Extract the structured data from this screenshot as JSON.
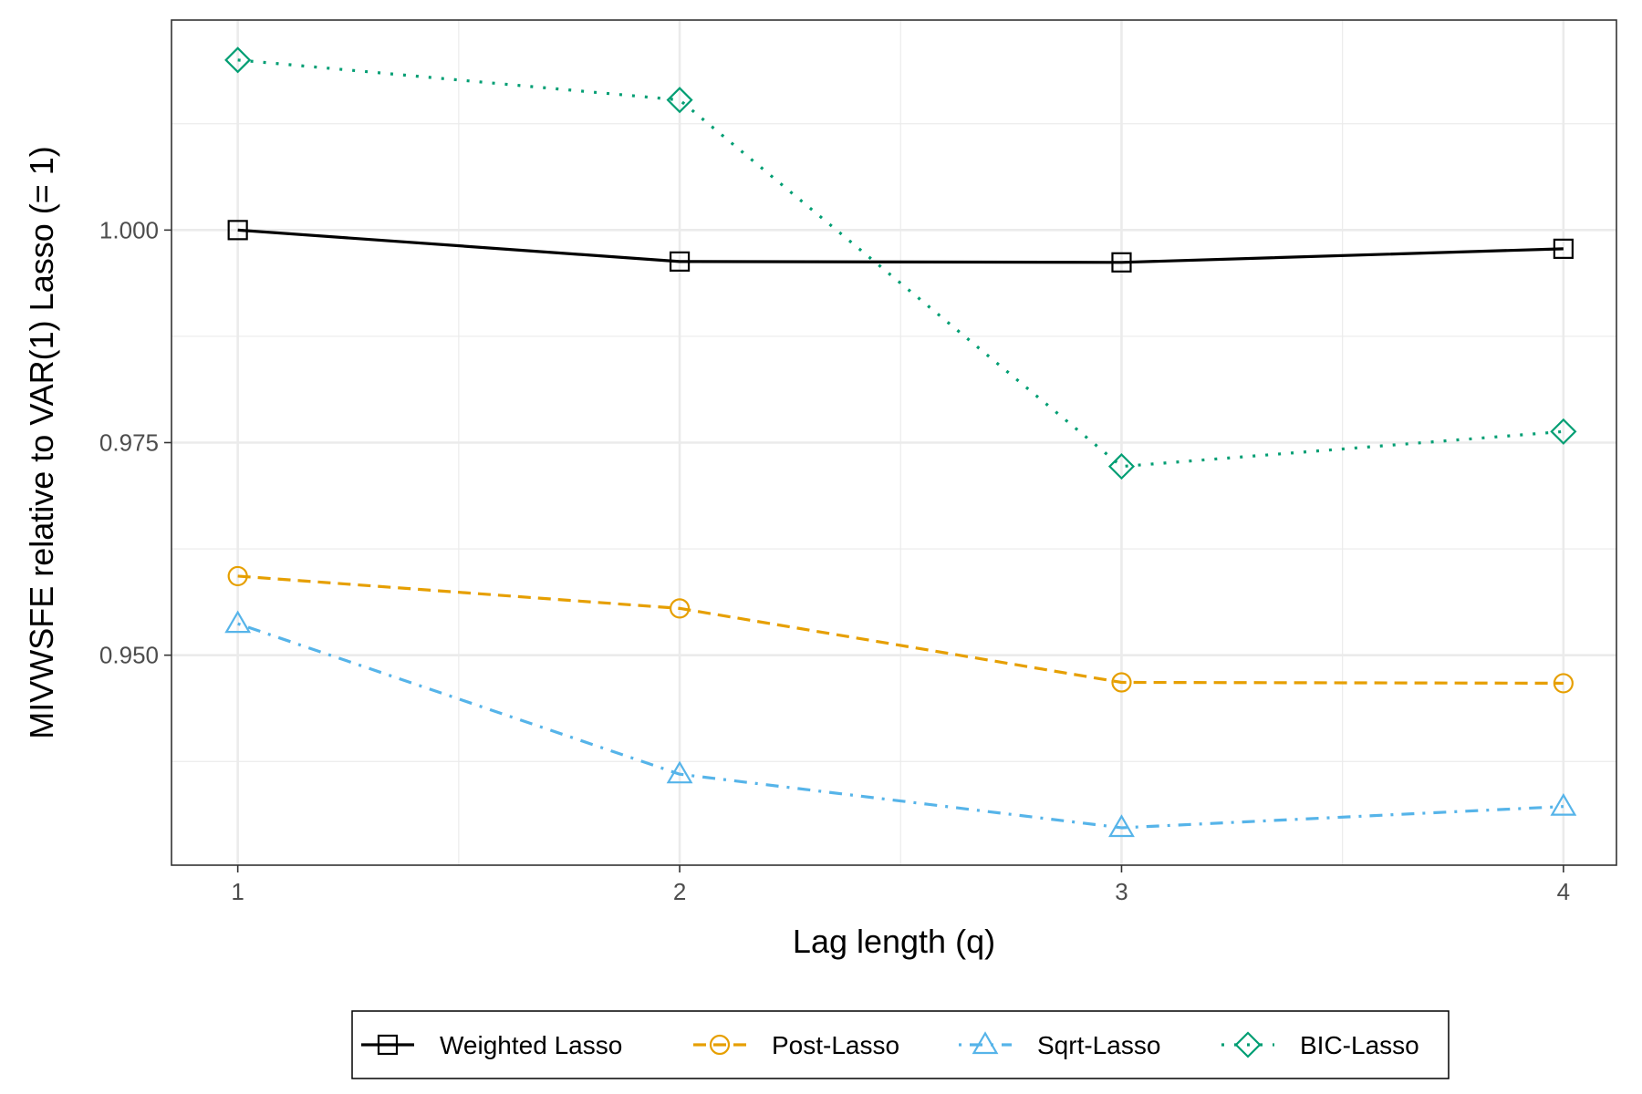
{
  "chart_data": {
    "type": "line",
    "xlabel": "Lag length (q)",
    "ylabel": "MIVWSFE relative to VAR(1) Lasso (= 1)",
    "x": [
      1,
      2,
      3,
      4
    ],
    "x_ticks": [
      "1",
      "2",
      "3",
      "4"
    ],
    "xlim": [
      0.85,
      4.12
    ],
    "ylim": [
      0.9253,
      1.0247
    ],
    "y_ticks": [
      0.95,
      0.975,
      1.0
    ],
    "y_tick_labels": [
      "0.950",
      "0.975",
      "1.000"
    ],
    "grid": true,
    "legend_position": "bottom",
    "series": [
      {
        "name": "Weighted Lasso",
        "values": [
          1.0,
          0.9963,
          0.9962,
          0.9978
        ],
        "color": "#000000",
        "marker": "square",
        "line": "solid"
      },
      {
        "name": "Post-Lasso",
        "values": [
          0.9593,
          0.9555,
          0.9468,
          0.9467
        ],
        "color": "#E69F00",
        "marker": "circle",
        "line": "dashed"
      },
      {
        "name": "Sqrt-Lasso",
        "values": [
          0.9537,
          0.936,
          0.9297,
          0.9322
        ],
        "color": "#56B4E9",
        "marker": "triangle",
        "line": "dotdash"
      },
      {
        "name": "BIC-Lasso",
        "values": [
          1.02,
          1.0153,
          0.9722,
          0.9763
        ],
        "color": "#009E73",
        "marker": "diamond",
        "line": "dotted"
      }
    ]
  }
}
